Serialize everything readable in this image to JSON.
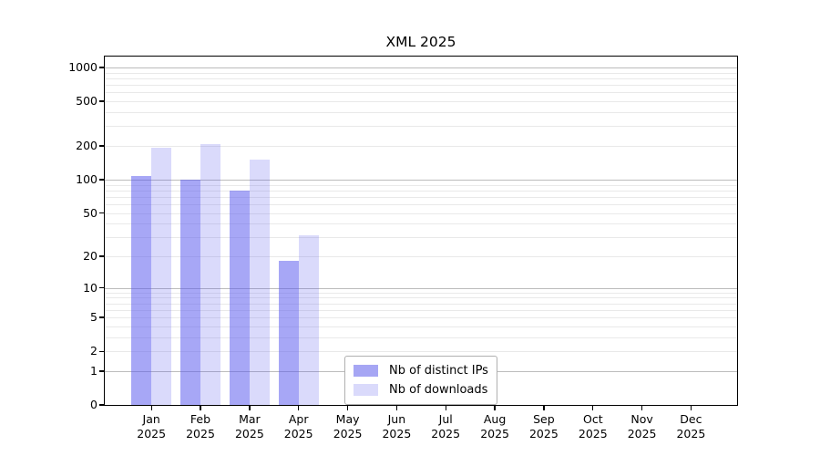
{
  "chart_data": {
    "type": "bar",
    "title": "XML 2025",
    "categories": [
      "Jan 2025",
      "Feb 2025",
      "Mar 2025",
      "Apr 2025",
      "May 2025",
      "Jun 2025",
      "Jul 2025",
      "Aug 2025",
      "Sep 2025",
      "Oct 2025",
      "Nov 2025",
      "Dec 2025"
    ],
    "series": [
      {
        "name": "Nb of distinct IPs",
        "color": "#a6a6f4",
        "rgba": "rgba(88,88,238,0.53)",
        "values": [
          107,
          100,
          80,
          18,
          null,
          null,
          null,
          null,
          null,
          null,
          null,
          null
        ]
      },
      {
        "name": "Nb of downloads",
        "color": "#dadafb",
        "rgba": "rgba(88,88,238,0.22)",
        "values": [
          192,
          207,
          150,
          31,
          null,
          null,
          null,
          null,
          null,
          null,
          null,
          null
        ]
      }
    ],
    "y_scale": "log10(value+1)",
    "y_ticks": [
      0,
      1,
      2,
      5,
      10,
      20,
      50,
      100,
      200,
      500,
      1000
    ],
    "ylim": [
      0,
      1250
    ],
    "grid": "horizontal",
    "legend_position": "inside-bottom-center"
  },
  "x_axis": {
    "months": [
      "Jan",
      "Feb",
      "Mar",
      "Apr",
      "May",
      "Jun",
      "Jul",
      "Aug",
      "Sep",
      "Oct",
      "Nov",
      "Dec"
    ],
    "year": "2025"
  },
  "colors": {
    "major_grid": "#bcbcbc",
    "minor_grid": "#e9e9e9",
    "spine": "#000000",
    "text": "#000000",
    "background": "#ffffff"
  }
}
